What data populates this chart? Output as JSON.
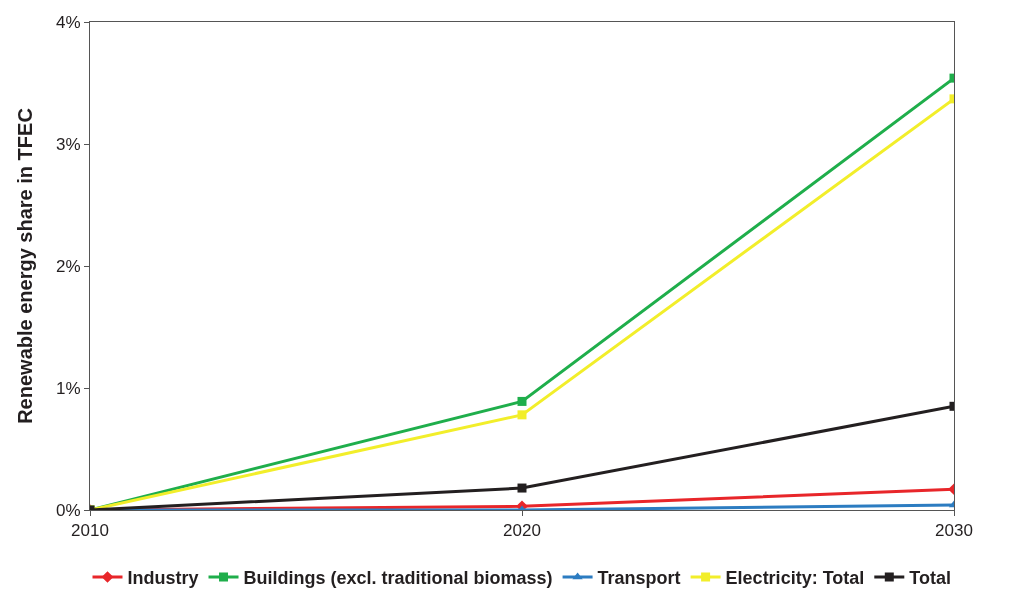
{
  "chart_data": {
    "type": "line",
    "ylabel": "Renewable energy share in TFEC",
    "x": [
      2010,
      2020,
      2030
    ],
    "xlim": [
      2010,
      2030
    ],
    "xticks": [
      2010,
      2020,
      2030
    ],
    "ylim": [
      0,
      4
    ],
    "yticks": [
      {
        "value": 0,
        "label": "0%"
      },
      {
        "value": 1,
        "label": "1%"
      },
      {
        "value": 2,
        "label": "2%"
      },
      {
        "value": 3,
        "label": "3%"
      },
      {
        "value": 4,
        "label": "4%"
      }
    ],
    "grid": false,
    "legend": "bottom",
    "series": [
      {
        "name": "Industry",
        "color": "#e8262a",
        "marker": "diamond",
        "values": [
          0,
          0.03,
          0.17
        ]
      },
      {
        "name": "Buildings (excl. traditional biomass)",
        "color": "#1fae4b",
        "marker": "square",
        "values": [
          0,
          0.89,
          3.54
        ]
      },
      {
        "name": "Transport",
        "color": "#2c7cc1",
        "marker": "triangle",
        "values": [
          0,
          0,
          0.04
        ]
      },
      {
        "name": "Electricity: Total",
        "color": "#f2ee2a",
        "marker": "square",
        "values": [
          0,
          0.78,
          3.37
        ]
      },
      {
        "name": "Total",
        "color": "#231f20",
        "marker": "square",
        "values": [
          0,
          0.18,
          0.85
        ]
      }
    ]
  }
}
